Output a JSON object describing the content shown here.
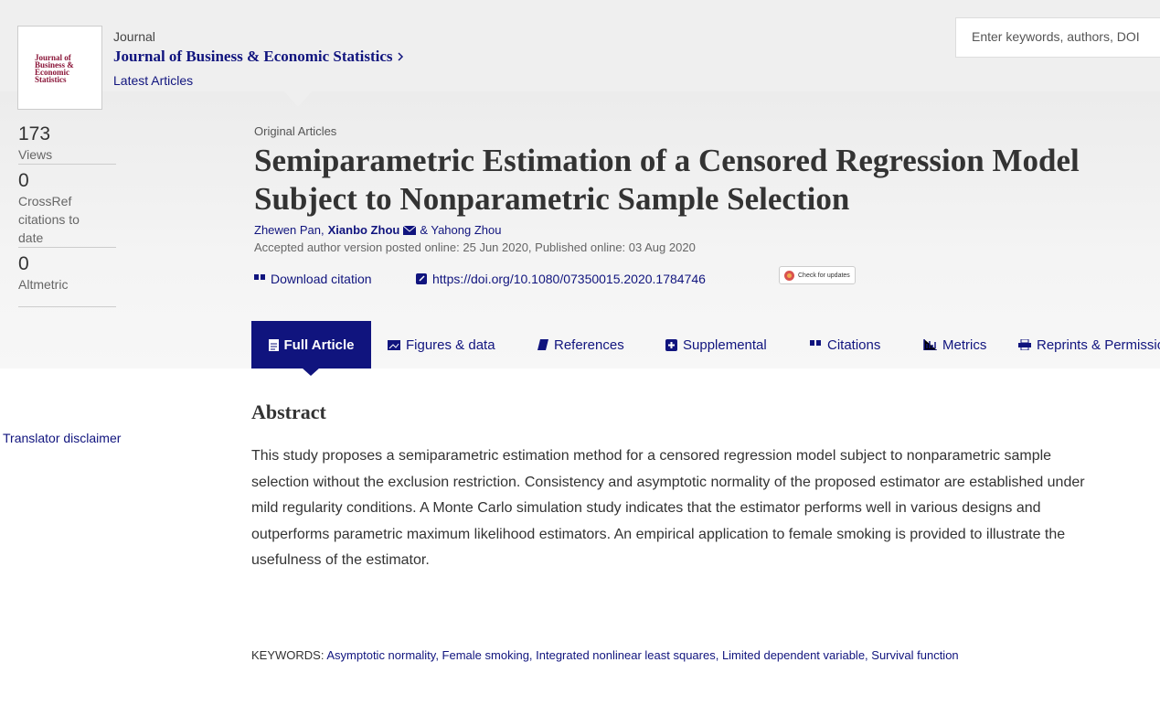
{
  "header": {
    "logo_lines": [
      "Journal of",
      "Business &",
      "Economic",
      "Statistics"
    ],
    "journal_label": "Journal",
    "journal_name": "Journal of Business & Economic Statistics",
    "latest": "Latest Articles",
    "search_placeholder": "Enter keywords, authors, DOI"
  },
  "metrics": [
    {
      "value": "173",
      "label": "Views"
    },
    {
      "value": "0",
      "label": "CrossRef citations to date"
    },
    {
      "value": "0",
      "label": "Altmetric"
    }
  ],
  "article": {
    "section": "Original Articles",
    "title": "Semiparametric Estimation of a Censored Regression Model Subject to Nonparametric Sample Selection",
    "authors": [
      "Zhewen Pan,",
      "Xianbo Zhou",
      "& Yahong Zhou"
    ],
    "dates": "Accepted author version posted online: 25 Jun 2020, Published online: 03 Aug 2020",
    "download_citation": "Download citation",
    "doi": "https://doi.org/10.1080/07350015.2020.1784746",
    "check_updates": "Check for updates"
  },
  "tabs": [
    "Full Article",
    "Figures & data",
    "References",
    "Supplemental",
    "Citations",
    "Metrics",
    "Reprints & Permissions"
  ],
  "translator_disclaimer": "Translator disclaimer",
  "abstract": {
    "heading": "Abstract",
    "text": "This study proposes a semiparametric estimation method for a censored regression model subject to nonparametric sample selection without the exclusion restriction. Consistency and asymptotic normality of the proposed estimator are established under mild regularity conditions. A Monte Carlo simulation study indicates that the estimator performs well in various designs and outperforms parametric maximum likelihood estimators. An empirical application to female smoking is provided to illustrate the usefulness of the estimator.",
    "keywords_label": "KEYWORDS:",
    "keywords": "Asymptotic normality, Female smoking, Integrated nonlinear least squares, Limited dependent variable, Survival function"
  }
}
